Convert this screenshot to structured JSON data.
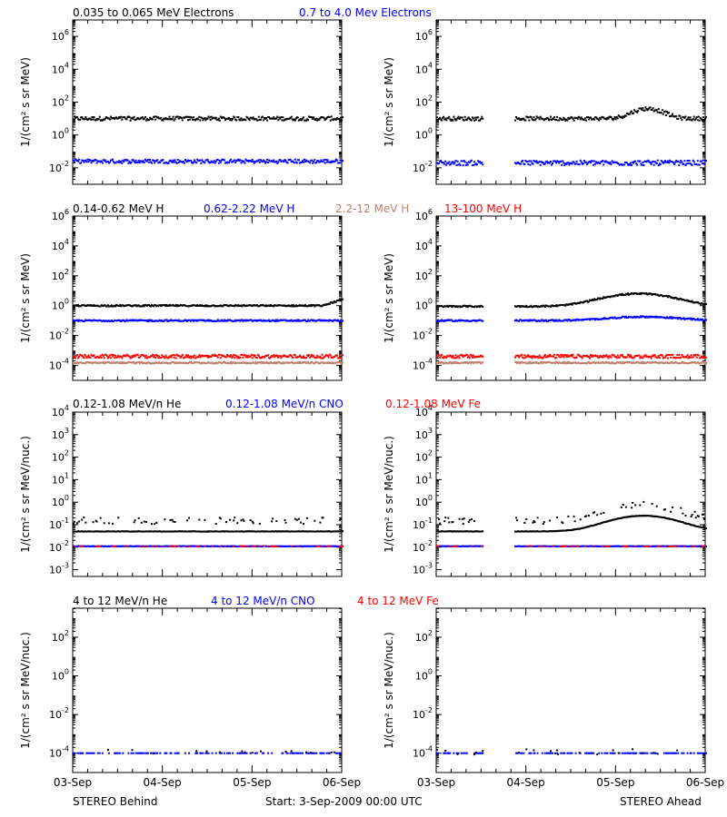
{
  "colors": {
    "black": "#000000",
    "blue": "#0000ff",
    "tan": "#c08070",
    "red": "#ff0000"
  },
  "footer": {
    "left": "STEREO Behind",
    "center": "Start:  3-Sep-2009 00:00 UTC",
    "right": "STEREO Ahead"
  },
  "chart_data": [
    {
      "type": "scatter",
      "row": 1,
      "legend": [
        {
          "label": "0.035 to 0.065 MeV Electrons",
          "color": "#000000"
        },
        {
          "label": "0.7 to 4.0 Mev Electrons",
          "color": "#0000ff"
        }
      ],
      "ylabel": "1/(cm² s sr MeV)",
      "y_scale": "log",
      "y_ticks": [
        {
          "exp": -2,
          "label": "10",
          "sup": "-2"
        },
        {
          "exp": 0,
          "label": "10",
          "sup": "0"
        },
        {
          "exp": 2,
          "label": "10",
          "sup": "2"
        },
        {
          "exp": 4,
          "label": "10",
          "sup": "4"
        },
        {
          "exp": 6,
          "label": "10",
          "sup": "6"
        }
      ],
      "x_ticks": [
        "03-Sep",
        "04-Sep",
        "05-Sep",
        "06-Sep"
      ],
      "panels": [
        {
          "spacecraft": "STEREO Behind",
          "series": [
            {
              "color": "#000000",
              "level": 10,
              "spread": 0.12
            },
            {
              "color": "#0000ff",
              "level": 0.025,
              "spread": 0.12
            }
          ]
        },
        {
          "spacecraft": "STEREO Ahead",
          "gap": [
            0.17,
            0.29
          ],
          "series": [
            {
              "color": "#000000",
              "level": 10,
              "spread": 0.12,
              "bump": {
                "center": 2.35,
                "width": 0.2,
                "peak": 4
              }
            },
            {
              "color": "#0000ff",
              "level": 0.02,
              "spread": 0.15
            }
          ]
        }
      ]
    },
    {
      "type": "scatter",
      "row": 2,
      "legend": [
        {
          "label": "0.14-0.62 MeV H",
          "color": "#000000"
        },
        {
          "label": "0.62-2.22 MeV H",
          "color": "#0000ff"
        },
        {
          "label": "2.2-12 MeV H",
          "color": "#c08070"
        },
        {
          "label": "13-100 MeV H",
          "color": "#ff0000"
        }
      ],
      "ylabel": "1/(cm² s sr MeV)",
      "y_scale": "log",
      "y_ticks": [
        {
          "exp": -4,
          "label": "10",
          "sup": "-4"
        },
        {
          "exp": -2,
          "label": "10",
          "sup": "-2"
        },
        {
          "exp": 0,
          "label": "10",
          "sup": "0"
        },
        {
          "exp": 2,
          "label": "10",
          "sup": "2"
        },
        {
          "exp": 4,
          "label": "10",
          "sup": "4"
        },
        {
          "exp": 6,
          "label": "10",
          "sup": "6"
        }
      ],
      "x_ticks": [
        "03-Sep",
        "04-Sep",
        "05-Sep",
        "06-Sep"
      ],
      "panels": [
        {
          "spacecraft": "STEREO Behind",
          "series": [
            {
              "color": "#000000",
              "level": 1.0,
              "spread": 0.05,
              "rise_end": 2
            },
            {
              "color": "#0000ff",
              "level": 0.1,
              "spread": 0.05
            },
            {
              "color": "#ff0000",
              "level": 0.0004,
              "spread": 0.12
            },
            {
              "color": "#c08070",
              "level": 0.00015,
              "spread": 0.05
            }
          ]
        },
        {
          "spacecraft": "STEREO Ahead",
          "gap": [
            0.17,
            0.29
          ],
          "series": [
            {
              "color": "#000000",
              "level": 0.9,
              "spread": 0.05,
              "bump": {
                "center": 2.25,
                "width": 0.45,
                "peak": 7
              }
            },
            {
              "color": "#0000ff",
              "level": 0.1,
              "spread": 0.05,
              "bump": {
                "center": 2.3,
                "width": 0.5,
                "peak": 1.8
              }
            },
            {
              "color": "#ff0000",
              "level": 0.0004,
              "spread": 0.12
            },
            {
              "color": "#c08070",
              "level": 0.00015,
              "spread": 0.05
            }
          ]
        }
      ]
    },
    {
      "type": "scatter",
      "row": 3,
      "legend": [
        {
          "label": "0.12-1.08 MeV/n He",
          "color": "#000000"
        },
        {
          "label": "0.12-1.08 MeV/n CNO",
          "color": "#0000ff"
        },
        {
          "label": "0.12-1.08 MeV Fe",
          "color": "#ff0000"
        }
      ],
      "ylabel": "1/(cm² s sr MeV/nuc.)",
      "y_scale": "log",
      "y_ticks": [
        {
          "exp": -3,
          "label": "10",
          "sup": "-3"
        },
        {
          "exp": -2,
          "label": "10",
          "sup": "-2"
        },
        {
          "exp": -1,
          "label": "10",
          "sup": "-1"
        },
        {
          "exp": 0,
          "label": "10",
          "sup": "0"
        },
        {
          "exp": 1,
          "label": "10",
          "sup": "1"
        },
        {
          "exp": 2,
          "label": "10",
          "sup": "2"
        },
        {
          "exp": 3,
          "label": "10",
          "sup": "3"
        },
        {
          "exp": 4,
          "label": "10",
          "sup": "4"
        }
      ],
      "x_ticks": [
        "03-Sep",
        "04-Sep",
        "05-Sep",
        "06-Sep"
      ],
      "panels": [
        {
          "spacecraft": "STEREO Behind",
          "series": [
            {
              "color": "#000000",
              "level": 0.05,
              "spread": 0.01,
              "sparse_upper": 0.15
            },
            {
              "color": "#0000ff",
              "level": 0.011,
              "spread": 0.01
            },
            {
              "color": "#ff0000",
              "level": 0.011,
              "spread": 0.01,
              "density": 0.2
            }
          ]
        },
        {
          "spacecraft": "STEREO Ahead",
          "gap": [
            0.17,
            0.29
          ],
          "series": [
            {
              "color": "#000000",
              "level": 0.05,
              "spread": 0.01,
              "sparse_upper": 0.15,
              "bump": {
                "center": 2.3,
                "width": 0.45,
                "peak": 5
              }
            },
            {
              "color": "#0000ff",
              "level": 0.011,
              "spread": 0.01
            },
            {
              "color": "#ff0000",
              "level": 0.011,
              "spread": 0.01,
              "density": 0.2
            }
          ]
        }
      ]
    },
    {
      "type": "scatter",
      "row": 4,
      "legend": [
        {
          "label": "4 to 12 MeV/n He",
          "color": "#000000"
        },
        {
          "label": "4 to 12 MeV/n CNO",
          "color": "#0000ff"
        },
        {
          "label": "4 to 12 MeV Fe",
          "color": "#ff0000"
        }
      ],
      "ylabel": "1/(cm² s sr MeV/nuc.)",
      "y_scale": "log",
      "y_ticks": [
        {
          "exp": -4,
          "label": "10",
          "sup": "-4"
        },
        {
          "exp": -2,
          "label": "10",
          "sup": "-2"
        },
        {
          "exp": 0,
          "label": "10",
          "sup": "0"
        },
        {
          "exp": 2,
          "label": "10",
          "sup": "2"
        }
      ],
      "x_ticks": [
        "03-Sep",
        "04-Sep",
        "05-Sep",
        "06-Sep"
      ],
      "panels": [
        {
          "spacecraft": "STEREO Behind",
          "series": [
            {
              "color": "#0000ff",
              "level": 0.0001,
              "spread": 0.0,
              "density": 0.45
            },
            {
              "color": "#000000",
              "level": 0.00012,
              "spread": 0.1,
              "density": 0.05
            }
          ]
        },
        {
          "spacecraft": "STEREO Ahead",
          "gap": [
            0.17,
            0.29
          ],
          "series": [
            {
              "color": "#0000ff",
              "level": 0.0001,
              "spread": 0.0,
              "density": 0.45
            },
            {
              "color": "#000000",
              "level": 0.00012,
              "spread": 0.15,
              "density": 0.08
            }
          ]
        }
      ]
    }
  ]
}
